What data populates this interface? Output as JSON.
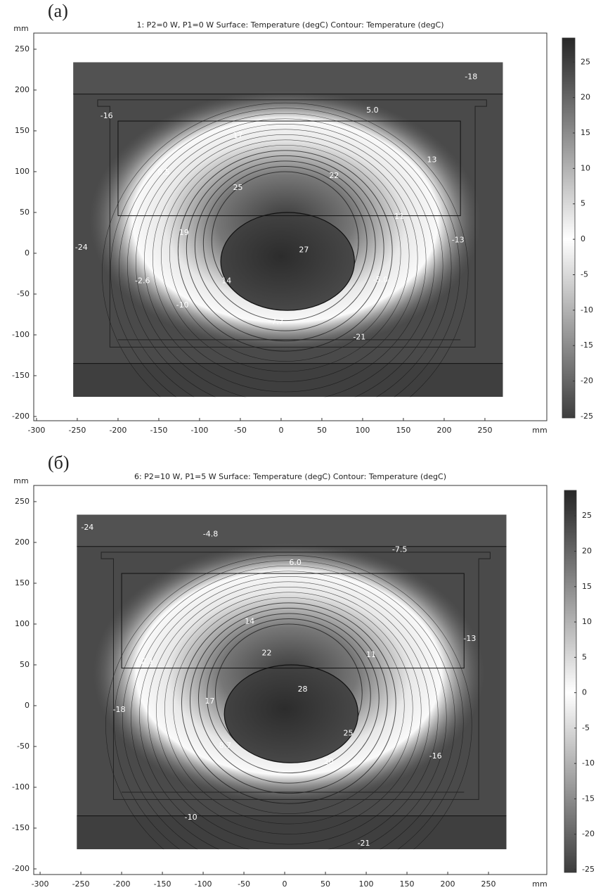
{
  "chart_data": [
    {
      "type": "contour",
      "panel_label": "(a)",
      "title": "1: P2=0 W, P1=0 W   Surface: Temperature (degC)  Contour: Temperature (degC)",
      "xlabel": "mm",
      "ylabel": "mm",
      "xlim": [
        -303.4,
        325.9
      ],
      "ylim": [
        -205.2,
        269.8
      ],
      "xticks": [
        -300,
        -250,
        -200,
        -150,
        -100,
        -50,
        0,
        50,
        100,
        150,
        200,
        250
      ],
      "yticks": [
        -200,
        -150,
        -100,
        -50,
        0,
        50,
        100,
        150,
        200,
        250
      ],
      "colorbar": {
        "clim": [
          -25.2,
          28.4
        ],
        "ticks": [
          -25,
          -20,
          -15,
          -10,
          -5,
          0,
          5,
          10,
          15,
          20,
          25
        ]
      },
      "contour_labels": [
        {
          "text": "-18",
          "x": 233,
          "y": 216
        },
        {
          "text": "5.0",
          "x": 112,
          "y": 175
        },
        {
          "text": "-16",
          "x": -214,
          "y": 168
        },
        {
          "text": "17",
          "x": -53,
          "y": 144
        },
        {
          "text": "13",
          "x": 185,
          "y": 114
        },
        {
          "text": "8.5",
          "x": -144,
          "y": 99
        },
        {
          "text": "22",
          "x": 65,
          "y": 95
        },
        {
          "text": "25",
          "x": -53,
          "y": 80
        },
        {
          "text": "11",
          "x": 145,
          "y": 45
        },
        {
          "text": "19",
          "x": -119,
          "y": 25
        },
        {
          "text": "-13",
          "x": 217,
          "y": 16
        },
        {
          "text": "-24",
          "x": -245,
          "y": 7
        },
        {
          "text": "27",
          "x": 28,
          "y": 4
        },
        {
          "text": "-2.6",
          "x": -170,
          "y": -34
        },
        {
          "text": "14",
          "x": -67,
          "y": -34
        },
        {
          "text": "-5.0",
          "x": 122,
          "y": -33
        },
        {
          "text": "-10",
          "x": -121,
          "y": -64
        },
        {
          "text": "-7.7",
          "x": -6,
          "y": -84
        },
        {
          "text": "-21",
          "x": 96,
          "y": -103
        }
      ]
    },
    {
      "type": "contour",
      "panel_label": "(б)",
      "title": "6: P2=10 W, P1=5 W   Surface: Temperature (degC)  Contour: Temperature (degC)",
      "xlabel": "mm",
      "ylabel": "mm",
      "xlim": [
        -307.8,
        321.5
      ],
      "ylim": [
        -206.9,
        269.8
      ],
      "xticks": [
        -300,
        -250,
        -200,
        -150,
        -100,
        -50,
        0,
        50,
        100,
        150,
        200,
        250
      ],
      "yticks": [
        -200,
        -150,
        -100,
        -50,
        0,
        50,
        100,
        150,
        200,
        250
      ],
      "colorbar": {
        "clim": [
          -25.4,
          28.6
        ],
        "ticks": [
          -25,
          -20,
          -15,
          -10,
          -5,
          0,
          5,
          10,
          15,
          20,
          25
        ]
      },
      "contour_labels": [
        {
          "text": "-24",
          "x": -242,
          "y": 218
        },
        {
          "text": "-4.8",
          "x": -91,
          "y": 210
        },
        {
          "text": "-7.5",
          "x": 141,
          "y": 191
        },
        {
          "text": "6.0",
          "x": 13,
          "y": 175
        },
        {
          "text": "14",
          "x": -43,
          "y": 103
        },
        {
          "text": "-13",
          "x": 227,
          "y": 82
        },
        {
          "text": "22",
          "x": -22,
          "y": 64
        },
        {
          "text": "-2.1",
          "x": -170,
          "y": 54
        },
        {
          "text": "11",
          "x": 106,
          "y": 62
        },
        {
          "text": "28",
          "x": 22,
          "y": 20
        },
        {
          "text": "17",
          "x": -92,
          "y": 5
        },
        {
          "text": "-18",
          "x": -203,
          "y": -5
        },
        {
          "text": "25",
          "x": 78,
          "y": -34
        },
        {
          "text": "8.7",
          "x": -73,
          "y": -49
        },
        {
          "text": "-16",
          "x": 185,
          "y": -62
        },
        {
          "text": "20",
          "x": 54,
          "y": -69
        },
        {
          "text": "-10",
          "x": -115,
          "y": -137
        },
        {
          "text": "-21",
          "x": 97,
          "y": -169
        }
      ]
    }
  ]
}
